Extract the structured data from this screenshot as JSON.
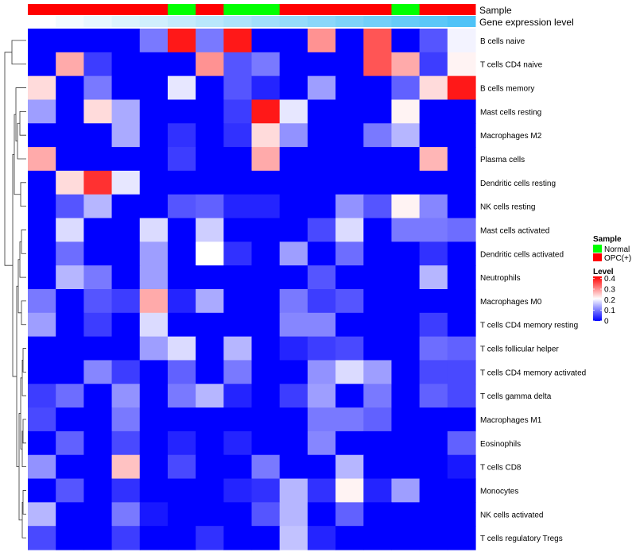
{
  "chart_data": {
    "type": "heatmap",
    "title": "",
    "annotation_tracks": [
      {
        "label": "Sample",
        "key": "sample"
      },
      {
        "label": "Gene expression level",
        "key": "expression_gradient"
      }
    ],
    "legend": {
      "position": "right",
      "sample": {
        "title": "Sample",
        "entries": [
          {
            "label": "Normal",
            "color": "#00ff00"
          },
          {
            "label": "OPC(+)",
            "color": "#ff0000"
          }
        ]
      },
      "level": {
        "title": "Level",
        "ticks": [
          "0.4",
          "0.3",
          "0.2",
          "0.1",
          "0"
        ],
        "tick_values": [
          0.4,
          0.3,
          0.2,
          0.1,
          0
        ],
        "range": [
          0,
          0.42
        ],
        "colors": {
          "low": "#0000ff",
          "mid": "#ffffff",
          "high": "#ff0000"
        }
      }
    },
    "columns": 16,
    "sample_groups": [
      "OPC(+)",
      "OPC(+)",
      "OPC(+)",
      "OPC(+)",
      "OPC(+)",
      "Normal",
      "OPC(+)",
      "Normal",
      "Normal",
      "OPC(+)",
      "OPC(+)",
      "OPC(+)",
      "OPC(+)",
      "Normal",
      "OPC(+)",
      "OPC(+)"
    ],
    "expression_gradient": {
      "start": "#ffffff",
      "end": "#4fc3f7"
    },
    "rows": [
      "B cells naive",
      "T cells CD4 naive",
      "B cells memory",
      "Mast cells resting",
      "Macrophages M2",
      "Plasma cells",
      "Dendritic cells resting",
      "NK cells resting",
      "Mast cells activated",
      "Dendritic cells activated",
      "Neutrophils",
      "Macrophages M0",
      "T cells CD4 memory resting",
      "T cells follicular helper",
      "T cells CD4 memory activated",
      "T cells gamma delta",
      "Macrophages M1",
      "Eosinophils",
      "T cells CD8",
      "Monocytes",
      "NK cells activated",
      "T cells regulatory  Tregs"
    ],
    "values": [
      [
        0,
        0,
        0,
        0,
        0.1,
        0.4,
        0.1,
        0.4,
        0,
        0,
        0.3,
        0,
        0.35,
        0,
        0.07,
        0.2
      ],
      [
        0,
        0.28,
        0.05,
        0,
        0,
        0,
        0.3,
        0.07,
        0.1,
        0,
        0,
        0,
        0.35,
        0.28,
        0.05,
        0.22
      ],
      [
        0.24,
        0,
        0.1,
        0,
        0,
        0.19,
        0,
        0.07,
        0.03,
        0,
        0.13,
        0,
        0,
        0.08,
        0.24,
        0.4
      ],
      [
        0.13,
        0,
        0.24,
        0.14,
        0,
        0,
        0,
        0.05,
        0.4,
        0.19,
        0,
        0,
        0,
        0.22,
        0,
        0
      ],
      [
        0,
        0,
        0,
        0.14,
        0,
        0.04,
        0,
        0.04,
        0.24,
        0.12,
        0,
        0,
        0.1,
        0.15,
        0,
        0
      ],
      [
        0.28,
        0,
        0,
        0,
        0,
        0.05,
        0,
        0,
        0.28,
        0,
        0,
        0,
        0,
        0,
        0.27,
        0
      ],
      [
        0,
        0.24,
        0.38,
        0.19,
        0,
        0,
        0,
        0,
        0,
        0,
        0,
        0,
        0,
        0,
        0,
        0
      ],
      [
        0,
        0.07,
        0.15,
        0,
        0,
        0.07,
        0.08,
        0.03,
        0.03,
        0,
        0,
        0.12,
        0.07,
        0.22,
        0.11,
        0
      ],
      [
        0,
        0.18,
        0,
        0,
        0.18,
        0,
        0.17,
        0,
        0,
        0,
        0.06,
        0.18,
        0,
        0.1,
        0.1,
        0.09
      ],
      [
        0,
        0.09,
        0,
        0,
        0.13,
        0,
        0.21,
        0.04,
        0,
        0.13,
        0,
        0.09,
        0,
        0,
        0.04,
        0
      ],
      [
        0,
        0.15,
        0.1,
        0,
        0.13,
        0,
        0,
        0,
        0,
        0,
        0.07,
        0,
        0,
        0,
        0.15,
        0
      ],
      [
        0.1,
        0,
        0.07,
        0.05,
        0.28,
        0.03,
        0.14,
        0,
        0,
        0.1,
        0.05,
        0.07,
        0,
        0,
        0,
        0
      ],
      [
        0.13,
        0,
        0.05,
        0,
        0.18,
        0,
        0,
        0,
        0,
        0.11,
        0.11,
        0,
        0,
        0,
        0.05,
        0
      ],
      [
        0,
        0,
        0,
        0,
        0.13,
        0.18,
        0,
        0.15,
        0,
        0.03,
        0.05,
        0.06,
        0,
        0,
        0.09,
        0.08
      ],
      [
        0,
        0,
        0.11,
        0.05,
        0,
        0.08,
        0,
        0.1,
        0,
        0,
        0.12,
        0.18,
        0.13,
        0,
        0.06,
        0.06
      ],
      [
        0.05,
        0.09,
        0,
        0.12,
        0,
        0.1,
        0.15,
        0.03,
        0,
        0.05,
        0.13,
        0,
        0.1,
        0,
        0.08,
        0.06
      ],
      [
        0.06,
        0,
        0,
        0.1,
        0,
        0,
        0,
        0,
        0,
        0,
        0.1,
        0.1,
        0.08,
        0,
        0,
        0
      ],
      [
        0,
        0.08,
        0,
        0.06,
        0,
        0.03,
        0,
        0.03,
        0,
        0,
        0.11,
        0,
        0,
        0,
        0,
        0.08
      ],
      [
        0.12,
        0,
        0,
        0.26,
        0,
        0.06,
        0,
        0,
        0.1,
        0,
        0,
        0.15,
        0,
        0,
        0,
        0.02
      ],
      [
        0,
        0.07,
        0,
        0.04,
        0,
        0,
        0,
        0.03,
        0.04,
        0.15,
        0.04,
        0.22,
        0.03,
        0.13,
        0,
        0
      ],
      [
        0.15,
        0,
        0,
        0.1,
        0.02,
        0,
        0,
        0,
        0.07,
        0.15,
        0,
        0.08,
        0,
        0,
        0,
        0
      ],
      [
        0.06,
        0,
        0,
        0.05,
        0,
        0,
        0.04,
        0,
        0,
        0.16,
        0.03,
        0,
        0,
        0,
        0,
        0
      ]
    ]
  }
}
